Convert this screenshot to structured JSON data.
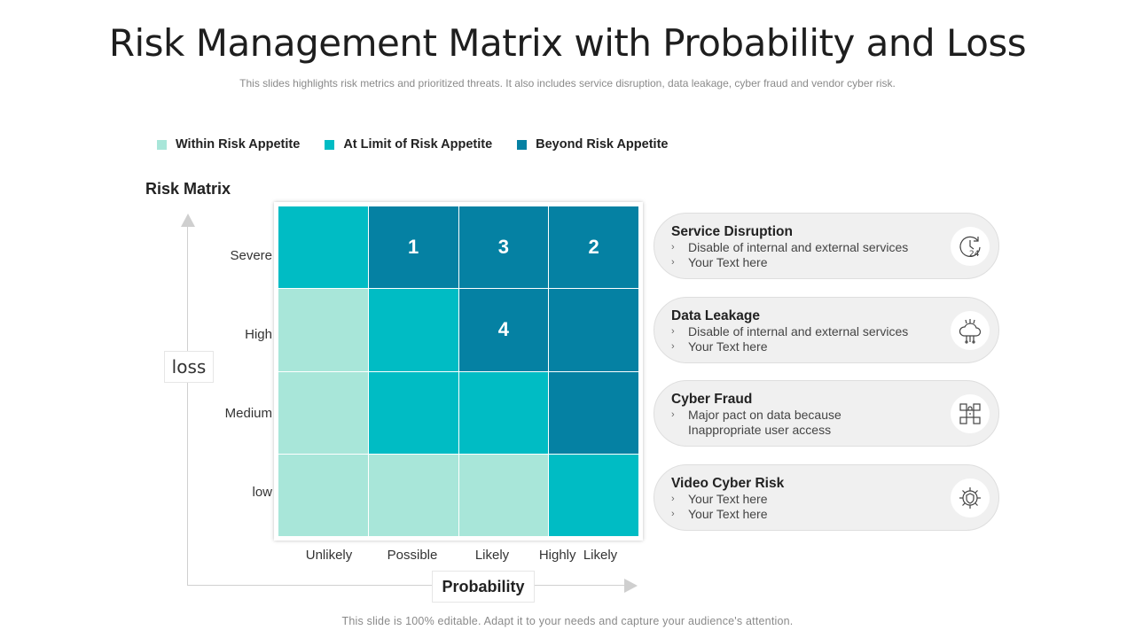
{
  "title": "Risk Management Matrix with Probability and Loss",
  "subtitle": "This slides highlights risk metrics and prioritized threats. It also includes service disruption, data leakage, cyber fraud  and vendor cyber risk.",
  "legend": [
    {
      "label": "Within Risk Appetite",
      "color": "#a8e6d9"
    },
    {
      "label": "At Limit of Risk Appetite",
      "color": "#00bcc4"
    },
    {
      "label": "Beyond Risk Appetite",
      "color": "#0581a3"
    }
  ],
  "matrix_title": "Risk Matrix",
  "y_axis_label": "loss",
  "x_axis_label": "Probability",
  "row_labels": [
    "Severe",
    "High",
    "Medium",
    "low"
  ],
  "col_labels": [
    "Unlikely",
    "Possible",
    "Likely",
    "Highly  Likely"
  ],
  "matrix": [
    [
      {
        "level": 1,
        "text": ""
      },
      {
        "level": 2,
        "text": "1"
      },
      {
        "level": 2,
        "text": "3"
      },
      {
        "level": 2,
        "text": "2"
      }
    ],
    [
      {
        "level": 0,
        "text": ""
      },
      {
        "level": 1,
        "text": ""
      },
      {
        "level": 2,
        "text": "4"
      },
      {
        "level": 2,
        "text": ""
      }
    ],
    [
      {
        "level": 0,
        "text": ""
      },
      {
        "level": 1,
        "text": ""
      },
      {
        "level": 1,
        "text": ""
      },
      {
        "level": 2,
        "text": ""
      }
    ],
    [
      {
        "level": 0,
        "text": ""
      },
      {
        "level": 0,
        "text": ""
      },
      {
        "level": 0,
        "text": ""
      },
      {
        "level": 1,
        "text": ""
      }
    ]
  ],
  "risks": [
    {
      "title": "Service Disruption",
      "bullets": [
        "Disable of internal and external services",
        "Your Text here"
      ],
      "icon": "clock-24-icon"
    },
    {
      "title": "Data Leakage",
      "bullets": [
        "Disable of internal and external services",
        "Your Text here"
      ],
      "icon": "cloud-network-icon"
    },
    {
      "title": "Cyber Fraud",
      "bullets": [
        "Major pact on data because",
        "Inappropriate user access"
      ],
      "icon": "security-chip-icon"
    },
    {
      "title": "Video Cyber Risk",
      "bullets": [
        "Your Text here",
        "Your Text here"
      ],
      "icon": "virus-shield-icon"
    }
  ],
  "footer": "This slide is 100% editable. Adapt it to your needs and capture your audience's attention."
}
